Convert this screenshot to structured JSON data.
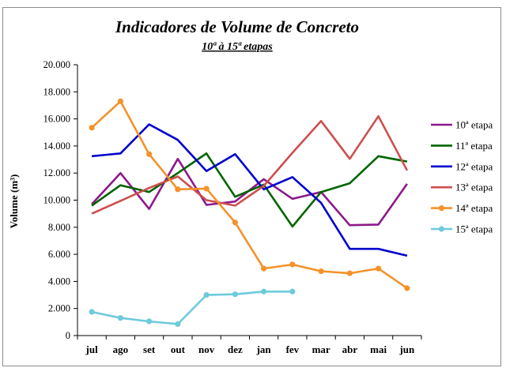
{
  "chart_data": {
    "type": "line",
    "title": "Indicadores de Volume de Concreto",
    "subtitle": "10ª à 15ª etapas",
    "ylabel": "Volume (m³)",
    "xlabel": "",
    "categories": [
      "jul",
      "ago",
      "set",
      "out",
      "nov",
      "dez",
      "jan",
      "fev",
      "mar",
      "abr",
      "mai",
      "jun"
    ],
    "ylim": [
      0,
      20000
    ],
    "yticks": [
      0,
      2000,
      4000,
      6000,
      8000,
      10000,
      12000,
      14000,
      16000,
      18000,
      20000
    ],
    "ytick_labels": [
      "0",
      "2.000",
      "4.000",
      "6.000",
      "8.000",
      "10.000",
      "12.000",
      "14.000",
      "16.000",
      "18.000",
      "20.000"
    ],
    "grid": false,
    "legend_position": "right",
    "series": [
      {
        "name": "10ª etapa",
        "color": "#8b1a8b",
        "marker": false,
        "values": [
          9700,
          12000,
          9350,
          13050,
          9650,
          9900,
          11550,
          10100,
          10600,
          8150,
          8200,
          11200
        ]
      },
      {
        "name": "11ª etapa",
        "color": "#006400",
        "marker": false,
        "values": [
          9600,
          11100,
          10600,
          12000,
          13450,
          10250,
          11150,
          8050,
          10600,
          11250,
          13250,
          12850
        ]
      },
      {
        "name": "12ª etapa",
        "color": "#0000cc",
        "marker": false,
        "values": [
          13250,
          13450,
          15600,
          14450,
          12150,
          13400,
          10800,
          11700,
          9800,
          6400,
          6400,
          5900
        ]
      },
      {
        "name": "13ª etapa",
        "color": "#cd4f4f",
        "marker": false,
        "values": [
          9000,
          9950,
          10900,
          11750,
          10000,
          9600,
          11050,
          13500,
          15850,
          13050,
          16200,
          12200
        ]
      },
      {
        "name": "14ª etapa",
        "color": "#f4922a",
        "marker": true,
        "values": [
          15350,
          17300,
          13400,
          10800,
          10850,
          8350,
          4950,
          5250,
          4750,
          4600,
          4950,
          3500
        ]
      },
      {
        "name": "15ª etapa",
        "color": "#6ecadc",
        "marker": true,
        "values": [
          1750,
          1300,
          1050,
          850,
          3000,
          3050,
          3250,
          3250,
          null,
          null,
          null,
          null
        ]
      }
    ]
  }
}
